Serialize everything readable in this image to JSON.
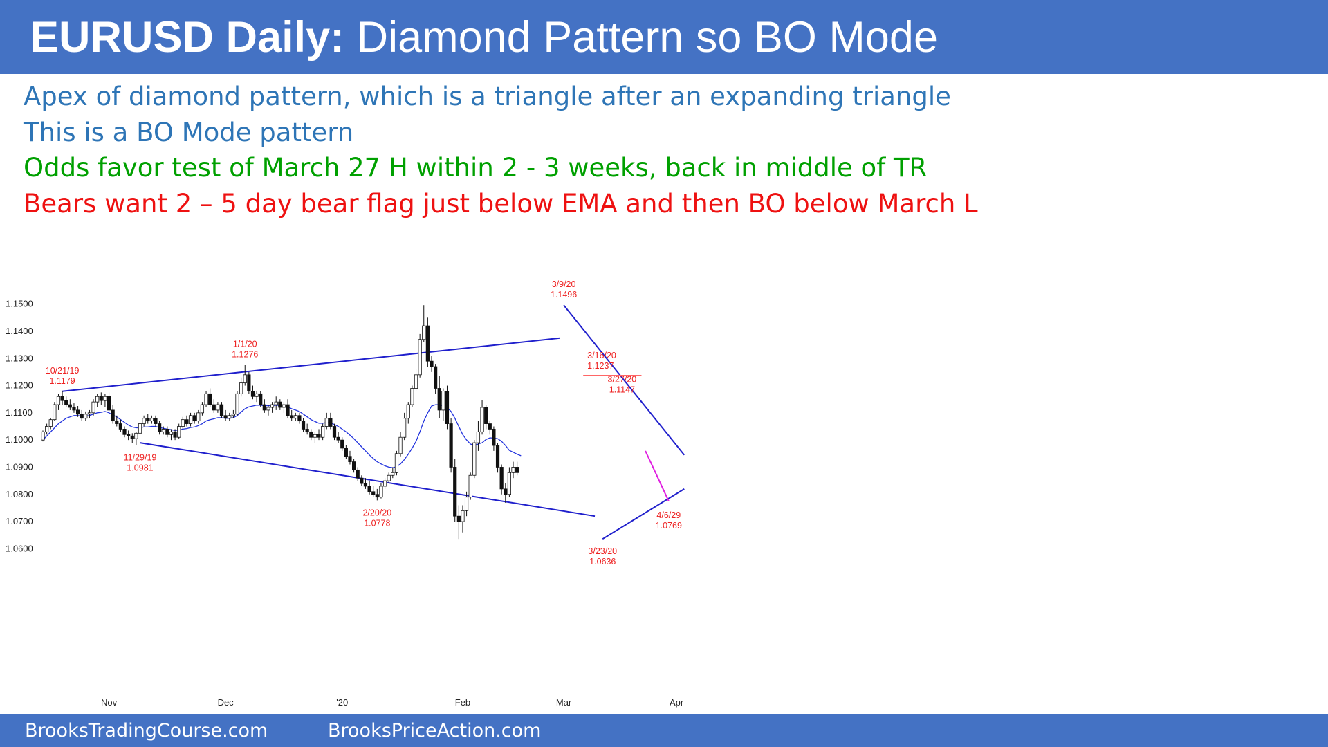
{
  "header": {
    "title_bold": "EURUSD Daily:",
    "title_rest": " Diamond Pattern so BO Mode",
    "background": "#4472c4"
  },
  "notes": [
    {
      "text": "Apex of diamond pattern, which is a triangle after an expanding triangle",
      "color": "#2e75b6"
    },
    {
      "text": "This is a BO Mode pattern",
      "color": "#2e75b6"
    },
    {
      "text": "Odds favor test of March 27 H within 2  - 3 weeks, back in middle of TR",
      "color": "#00a000"
    },
    {
      "text": "Bears want 2 – 5 day bear flag just below EMA and then BO below March L",
      "color": "#ee1111"
    }
  ],
  "footer": {
    "left": "BrooksTradingCourse.com",
    "right": "BrooksPriceAction.com"
  },
  "chart_data": {
    "type": "candlestick",
    "instrument": "EURUSD",
    "timeframe": "Daily",
    "ylim": [
      1.055,
      1.155
    ],
    "y_ticks": [
      "1.1500",
      "1.1400",
      "1.1300",
      "1.1200",
      "1.1100",
      "1.1000",
      "1.0900",
      "1.0800",
      "1.0700",
      "1.0600"
    ],
    "y_tick_values": [
      1.15,
      1.14,
      1.13,
      1.12,
      1.11,
      1.1,
      1.09,
      1.08,
      1.07,
      1.06
    ],
    "x_labels": [
      {
        "label": "Nov",
        "index": 17
      },
      {
        "label": "Dec",
        "index": 47
      },
      {
        "label": "'20",
        "index": 77
      },
      {
        "label": "Feb",
        "index": 108
      },
      {
        "label": "Mar",
        "index": 134
      },
      {
        "label": "Apr",
        "index": 163
      }
    ],
    "candles": [
      [
        1.1,
        1.1035,
        1.0995,
        1.103
      ],
      [
        1.103,
        1.106,
        1.102,
        1.105
      ],
      [
        1.105,
        1.108,
        1.104,
        1.1075
      ],
      [
        1.1075,
        1.114,
        1.107,
        1.113
      ],
      [
        1.113,
        1.117,
        1.111,
        1.116
      ],
      [
        1.116,
        1.1179,
        1.113,
        1.1145
      ],
      [
        1.1145,
        1.116,
        1.112,
        1.113
      ],
      [
        1.113,
        1.115,
        1.111,
        1.112
      ],
      [
        1.112,
        1.1135,
        1.11,
        1.111
      ],
      [
        1.111,
        1.1125,
        1.1085,
        1.1095
      ],
      [
        1.1095,
        1.111,
        1.107,
        1.108
      ],
      [
        1.108,
        1.1105,
        1.107,
        1.1095
      ],
      [
        1.1095,
        1.111,
        1.108,
        1.11
      ],
      [
        1.11,
        1.115,
        1.109,
        1.114
      ],
      [
        1.114,
        1.117,
        1.112,
        1.116
      ],
      [
        1.116,
        1.1175,
        1.113,
        1.1145
      ],
      [
        1.1145,
        1.117,
        1.112,
        1.116
      ],
      [
        1.116,
        1.1175,
        1.11,
        1.111
      ],
      [
        1.111,
        1.113,
        1.106,
        1.107
      ],
      [
        1.107,
        1.109,
        1.105,
        1.106
      ],
      [
        1.106,
        1.1075,
        1.103,
        1.104
      ],
      [
        1.104,
        1.105,
        1.101,
        1.102
      ],
      [
        1.102,
        1.1035,
        1.1,
        1.1015
      ],
      [
        1.1015,
        1.1025,
        1.099,
        1.1005
      ],
      [
        1.1005,
        1.103,
        1.0981,
        1.1025
      ],
      [
        1.1025,
        1.107,
        1.102,
        1.106
      ],
      [
        1.106,
        1.109,
        1.105,
        1.108
      ],
      [
        1.108,
        1.1095,
        1.106,
        1.107
      ],
      [
        1.107,
        1.109,
        1.106,
        1.108
      ],
      [
        1.108,
        1.109,
        1.105,
        1.106
      ],
      [
        1.106,
        1.107,
        1.102,
        1.103
      ],
      [
        1.103,
        1.105,
        1.102,
        1.104
      ],
      [
        1.104,
        1.105,
        1.101,
        1.102
      ],
      [
        1.102,
        1.104,
        1.1,
        1.103
      ],
      [
        1.103,
        1.104,
        1.1,
        1.101
      ],
      [
        1.101,
        1.106,
        1.1005,
        1.105
      ],
      [
        1.105,
        1.1085,
        1.104,
        1.1075
      ],
      [
        1.1075,
        1.109,
        1.105,
        1.106
      ],
      [
        1.106,
        1.11,
        1.105,
        1.109
      ],
      [
        1.109,
        1.11,
        1.106,
        1.107
      ],
      [
        1.107,
        1.111,
        1.106,
        1.11
      ],
      [
        1.11,
        1.114,
        1.109,
        1.113
      ],
      [
        1.113,
        1.118,
        1.112,
        1.117
      ],
      [
        1.117,
        1.119,
        1.112,
        1.113
      ],
      [
        1.113,
        1.115,
        1.11,
        1.111
      ],
      [
        1.111,
        1.114,
        1.11,
        1.113
      ],
      [
        1.113,
        1.114,
        1.108,
        1.109
      ],
      [
        1.109,
        1.111,
        1.107,
        1.108
      ],
      [
        1.108,
        1.11,
        1.107,
        1.109
      ],
      [
        1.109,
        1.111,
        1.108,
        1.1095
      ],
      [
        1.1095,
        1.118,
        1.109,
        1.117
      ],
      [
        1.117,
        1.123,
        1.116,
        1.121
      ],
      [
        1.121,
        1.1276,
        1.12,
        1.124
      ],
      [
        1.124,
        1.125,
        1.117,
        1.118
      ],
      [
        1.118,
        1.12,
        1.115,
        1.116
      ],
      [
        1.116,
        1.118,
        1.114,
        1.117
      ],
      [
        1.117,
        1.118,
        1.112,
        1.113
      ],
      [
        1.113,
        1.115,
        1.11,
        1.111
      ],
      [
        1.111,
        1.113,
        1.109,
        1.112
      ],
      [
        1.112,
        1.114,
        1.11,
        1.113
      ],
      [
        1.113,
        1.116,
        1.111,
        1.114
      ],
      [
        1.114,
        1.115,
        1.111,
        1.112
      ],
      [
        1.112,
        1.114,
        1.11,
        1.113
      ],
      [
        1.113,
        1.115,
        1.108,
        1.109
      ],
      [
        1.109,
        1.111,
        1.107,
        1.108
      ],
      [
        1.108,
        1.11,
        1.107,
        1.109
      ],
      [
        1.109,
        1.11,
        1.106,
        1.107
      ],
      [
        1.107,
        1.108,
        1.103,
        1.104
      ],
      [
        1.104,
        1.106,
        1.102,
        1.103
      ],
      [
        1.103,
        1.104,
        1.1,
        1.101
      ],
      [
        1.101,
        1.103,
        1.099,
        1.102
      ],
      [
        1.102,
        1.104,
        1.1,
        1.101
      ],
      [
        1.101,
        1.106,
        1.1,
        1.105
      ],
      [
        1.105,
        1.11,
        1.104,
        1.108
      ],
      [
        1.108,
        1.11,
        1.104,
        1.105
      ],
      [
        1.105,
        1.106,
        1.1,
        1.101
      ],
      [
        1.101,
        1.103,
        1.099,
        1.1
      ],
      [
        1.1,
        1.101,
        1.096,
        1.097
      ],
      [
        1.097,
        1.098,
        1.093,
        1.094
      ],
      [
        1.094,
        1.096,
        1.091,
        1.092
      ],
      [
        1.092,
        1.093,
        1.088,
        1.089
      ],
      [
        1.089,
        1.09,
        1.085,
        1.086
      ],
      [
        1.086,
        1.087,
        1.083,
        1.084
      ],
      [
        1.084,
        1.086,
        1.082,
        1.083
      ],
      [
        1.083,
        1.085,
        1.08,
        1.081
      ],
      [
        1.081,
        1.083,
        1.079,
        1.08
      ],
      [
        1.08,
        1.082,
        1.0778,
        1.079
      ],
      [
        1.079,
        1.084,
        1.0785,
        1.083
      ],
      [
        1.083,
        1.086,
        1.082,
        1.085
      ],
      [
        1.085,
        1.088,
        1.084,
        1.087
      ],
      [
        1.087,
        1.09,
        1.086,
        1.088
      ],
      [
        1.088,
        1.096,
        1.087,
        1.095
      ],
      [
        1.095,
        1.103,
        1.094,
        1.101
      ],
      [
        1.101,
        1.11,
        1.1,
        1.108
      ],
      [
        1.108,
        1.114,
        1.106,
        1.113
      ],
      [
        1.113,
        1.12,
        1.112,
        1.119
      ],
      [
        1.119,
        1.126,
        1.118,
        1.124
      ],
      [
        1.124,
        1.139,
        1.123,
        1.137
      ],
      [
        1.137,
        1.1496,
        1.136,
        1.142
      ],
      [
        1.142,
        1.145,
        1.127,
        1.129
      ],
      [
        1.129,
        1.131,
        1.125,
        1.127
      ],
      [
        1.127,
        1.128,
        1.117,
        1.119
      ],
      [
        1.119,
        1.1237,
        1.108,
        1.111
      ],
      [
        1.111,
        1.119,
        1.107,
        1.118
      ],
      [
        1.118,
        1.12,
        1.104,
        1.106
      ],
      [
        1.106,
        1.108,
        1.088,
        1.09
      ],
      [
        1.09,
        1.093,
        1.07,
        1.072
      ],
      [
        1.072,
        1.076,
        1.0636,
        1.07
      ],
      [
        1.07,
        1.076,
        1.066,
        1.074
      ],
      [
        1.074,
        1.081,
        1.072,
        1.079
      ],
      [
        1.079,
        1.088,
        1.078,
        1.087
      ],
      [
        1.087,
        1.1,
        1.086,
        1.099
      ],
      [
        1.099,
        1.107,
        1.096,
        1.103
      ],
      [
        1.103,
        1.1147,
        1.102,
        1.112
      ],
      [
        1.112,
        1.113,
        1.104,
        1.106
      ],
      [
        1.106,
        1.107,
        1.102,
        1.104
      ],
      [
        1.104,
        1.105,
        1.096,
        1.098
      ],
      [
        1.098,
        1.099,
        1.088,
        1.09
      ],
      [
        1.09,
        1.091,
        1.08,
        1.082
      ],
      [
        1.082,
        1.084,
        1.0769,
        1.08
      ],
      [
        1.08,
        1.09,
        1.079,
        1.088
      ],
      [
        1.088,
        1.092,
        1.086,
        1.09
      ],
      [
        1.09,
        1.092,
        1.087,
        1.088
      ]
    ],
    "ema": [
      1.1,
      1.1015,
      1.103,
      1.1045,
      1.106,
      1.107,
      1.108,
      1.1085,
      1.109,
      1.109,
      1.1088,
      1.1088,
      1.109,
      1.1095,
      1.11,
      1.1102,
      1.1105,
      1.11,
      1.1092,
      1.1085,
      1.1075,
      1.1065,
      1.1055,
      1.1048,
      1.1045,
      1.1045,
      1.1048,
      1.1048,
      1.105,
      1.105,
      1.1046,
      1.1043,
      1.104,
      1.1038,
      1.1035,
      1.1037,
      1.104,
      1.1042,
      1.1046,
      1.1048,
      1.1053,
      1.106,
      1.107,
      1.1075,
      1.1078,
      1.1082,
      1.1082,
      1.108,
      1.108,
      1.1082,
      1.109,
      1.1103,
      1.1115,
      1.1122,
      1.1125,
      1.1128,
      1.1128,
      1.1126,
      1.1126,
      1.1126,
      1.1128,
      1.1127,
      1.1127,
      1.1122,
      1.1115,
      1.111,
      1.1105,
      1.1095,
      1.1085,
      1.1075,
      1.1068,
      1.1062,
      1.1062,
      1.1064,
      1.1063,
      1.1057,
      1.105,
      1.104,
      1.103,
      1.1018,
      1.1005,
      1.099,
      1.0975,
      1.096,
      1.0945,
      1.0932,
      1.092,
      1.0912,
      1.0905,
      1.09,
      1.0898,
      1.0902,
      1.0912,
      1.0928,
      1.0948,
      1.097,
      1.0995,
      1.103,
      1.107,
      1.11,
      1.1125,
      1.113,
      1.113,
      1.1125,
      1.112,
      1.1105,
      1.108,
      1.105,
      1.102,
      1.1,
      1.0985,
      1.098,
      1.0985,
      1.099,
      1.1002,
      1.1008,
      1.1007,
      1.1005,
      1.0995,
      1.098,
      1.0962,
      1.0955,
      1.0948,
      1.0942
    ],
    "trendlines": [
      {
        "from": {
          "index": 5,
          "price": 1.1179
        },
        "to": {
          "index": 133,
          "price": 1.1375
        },
        "color": "#1f1fcc"
      },
      {
        "from": {
          "index": 25,
          "price": 1.099
        },
        "to": {
          "index": 142,
          "price": 1.072
        },
        "color": "#1f1fcc"
      },
      {
        "from": {
          "index": 134,
          "price": 1.1496
        },
        "to": {
          "index": 165,
          "price": 1.0945
        },
        "color": "#1f1fcc"
      },
      {
        "from": {
          "index": 144,
          "price": 1.0636
        },
        "to": {
          "index": 165,
          "price": 1.082
        },
        "color": "#1f1fcc"
      },
      {
        "from": {
          "index": 155,
          "price": 1.096
        },
        "to": {
          "index": 161,
          "price": 1.0775
        },
        "color": "#e01ee0"
      },
      {
        "from": {
          "index": 139,
          "price": 1.1237
        },
        "to": {
          "index": 154,
          "price": 1.1237
        },
        "color": "#ff6666"
      }
    ],
    "annotations": [
      {
        "lines": [
          "10/21/19",
          "1.1179"
        ],
        "index": 5,
        "price": 1.1179,
        "pos": "above"
      },
      {
        "lines": [
          "11/29/19",
          "1.0981"
        ],
        "index": 25,
        "price": 1.0981,
        "pos": "below"
      },
      {
        "lines": [
          "1/1/20",
          "1.1276"
        ],
        "index": 52,
        "price": 1.1276,
        "pos": "above"
      },
      {
        "lines": [
          "2/20/20",
          "1.0778"
        ],
        "index": 86,
        "price": 1.0778,
        "pos": "below"
      },
      {
        "lines": [
          "3/9/20",
          "1.1496"
        ],
        "index": 134,
        "price": 1.1496,
        "pos": "above"
      },
      {
        "lines": [
          "3/16/20",
          "1.1237"
        ],
        "index": 139,
        "price": 1.1237,
        "pos": "above-right"
      },
      {
        "lines": [
          "3/27/20",
          "1.1147"
        ],
        "index": 149,
        "price": 1.1147,
        "pos": "above"
      },
      {
        "lines": [
          "3/23/20",
          "1.0636"
        ],
        "index": 144,
        "price": 1.0636,
        "pos": "below"
      },
      {
        "lines": [
          "4/6/29",
          "1.0769"
        ],
        "index": 161,
        "price": 1.0769,
        "pos": "below"
      }
    ],
    "colors": {
      "bull": "#ffffff",
      "bear": "#111111",
      "wick": "#111111",
      "ema": "#2233dd",
      "label": "#ee2222",
      "axis": "#222222"
    }
  }
}
